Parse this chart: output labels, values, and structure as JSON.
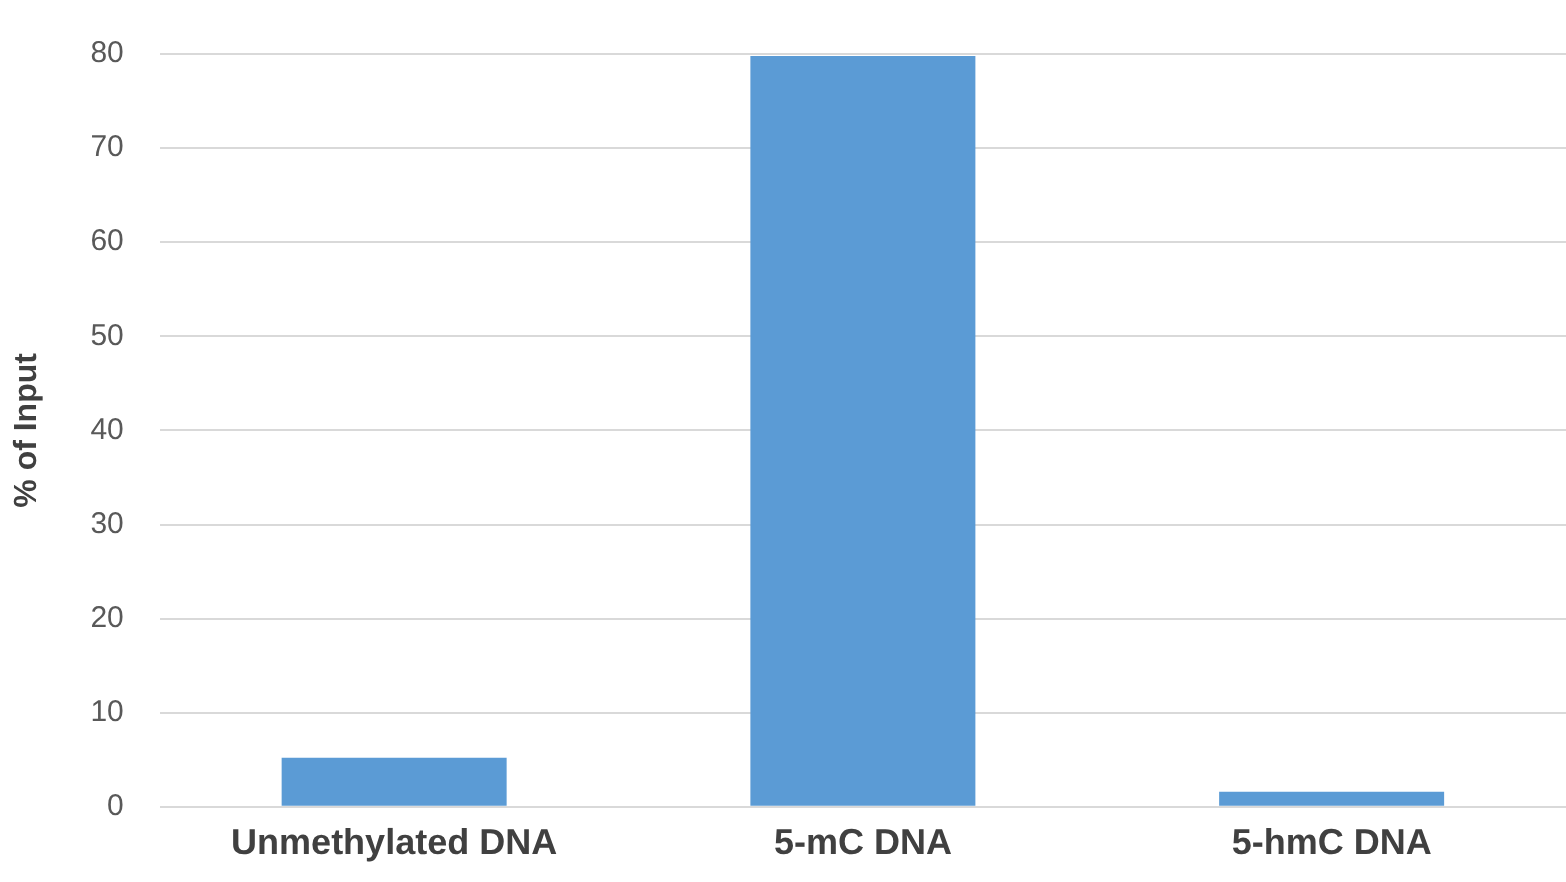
{
  "chart_data": {
    "type": "bar",
    "ylabel": "% of Input",
    "categories": [
      "Unmethylated DNA",
      "5-mC DNA",
      "5-hmC DNA"
    ],
    "values": [
      5.2,
      79.8,
      1.6
    ],
    "color": "#5b9bd5",
    "ylim": [
      0,
      80
    ],
    "yticks": [
      0,
      10,
      20,
      30,
      40,
      50,
      60,
      70,
      80
    ],
    "grid": "y",
    "legend": false
  }
}
